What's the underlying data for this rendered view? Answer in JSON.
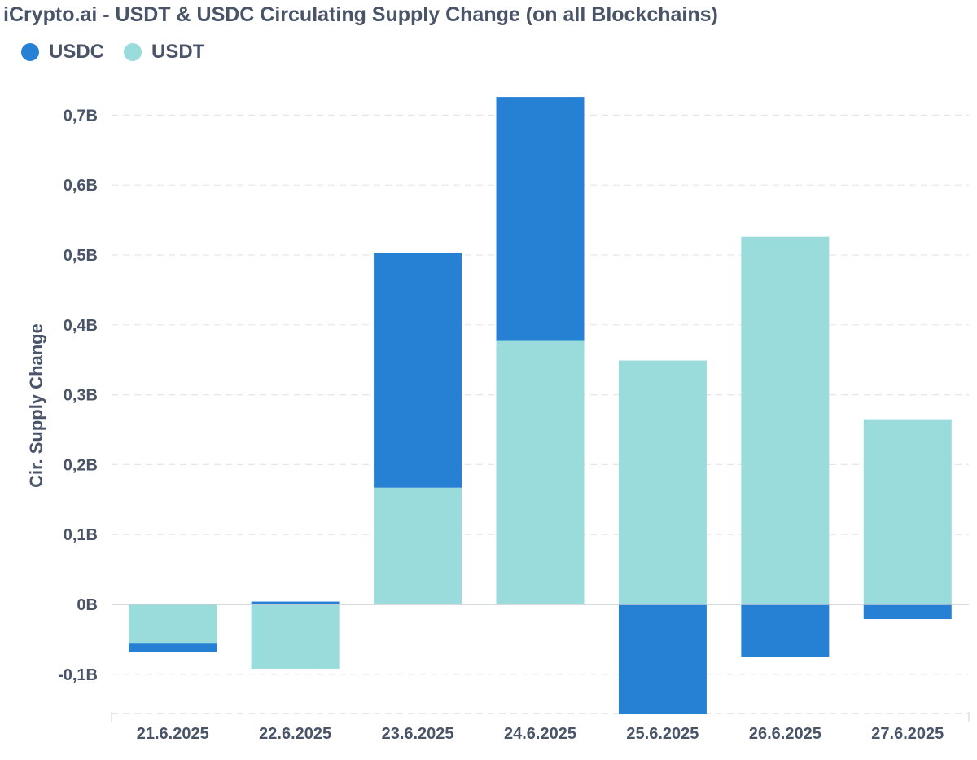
{
  "chart_data": {
    "type": "bar",
    "stacked": true,
    "title": "iCrypto.ai - USDT & USDC Circulating Supply Change (on all Blockchains)",
    "ylabel": "Cir. Supply Change",
    "xlabel": "",
    "categories": [
      "21.6.2025",
      "22.6.2025",
      "23.6.2025",
      "24.6.2025",
      "25.6.2025",
      "26.6.2025",
      "27.6.2025"
    ],
    "series": [
      {
        "name": "USDT",
        "color": "#9adbdb",
        "values": [
          -0.055,
          -0.092,
          0.167,
          0.377,
          0.349,
          0.526,
          0.265
        ]
      },
      {
        "name": "USDC",
        "color": "#2680d4",
        "values": [
          -0.013,
          0.004,
          0.336,
          0.349,
          -0.157,
          -0.075,
          -0.021
        ]
      }
    ],
    "legend_order": [
      "USDC",
      "USDT"
    ],
    "yticks": [
      {
        "value": 0.7,
        "label": "0,7B"
      },
      {
        "value": 0.6,
        "label": "0,6B"
      },
      {
        "value": 0.5,
        "label": "0,5B"
      },
      {
        "value": 0.4,
        "label": "0,4B"
      },
      {
        "value": 0.3,
        "label": "0,3B"
      },
      {
        "value": 0.2,
        "label": "0,2B"
      },
      {
        "value": 0.1,
        "label": "0,1B"
      },
      {
        "value": 0,
        "label": "0B"
      },
      {
        "value": -0.1,
        "label": "-0,1B"
      }
    ],
    "ylim": [
      -0.157,
      0.73
    ],
    "grid": true,
    "legend_position": "top-left"
  }
}
